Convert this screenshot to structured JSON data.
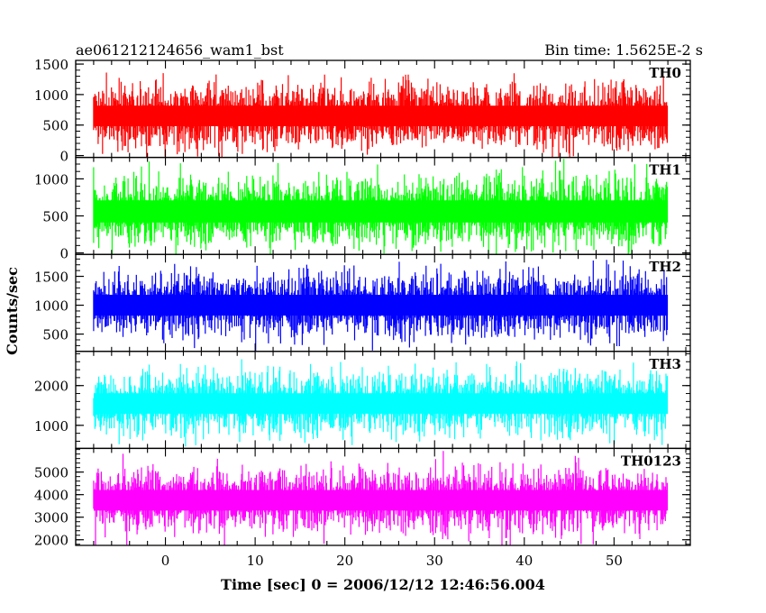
{
  "chart_data": [
    {
      "type": "line",
      "label": "TH0",
      "color": "#ff0000",
      "ylim": [
        -30,
        1560
      ],
      "yticks": [
        0,
        500,
        1000,
        1500
      ],
      "base_mean": 650,
      "base_noise": 280
    },
    {
      "type": "line",
      "label": "TH1",
      "color": "#00ff00",
      "ylim": [
        -20,
        1290
      ],
      "yticks": [
        0,
        500,
        1000
      ],
      "base_mean": 560,
      "base_noise": 250
    },
    {
      "type": "line",
      "label": "TH2",
      "color": "#0000ff",
      "ylim": [
        200,
        1880
      ],
      "yticks": [
        500,
        1000,
        1500
      ],
      "base_mean": 1000,
      "base_noise": 300
    },
    {
      "type": "line",
      "label": "TH3",
      "color": "#00ffff",
      "ylim": [
        420,
        2860
      ],
      "yticks": [
        1000,
        2000
      ],
      "base_mean": 1550,
      "base_noise": 430
    },
    {
      "type": "line",
      "label": "TH0123",
      "color": "#ff00ff",
      "ylim": [
        1750,
        6050
      ],
      "yticks": [
        2000,
        3000,
        4000,
        5000
      ],
      "base_mean": 3750,
      "base_noise": 760
    }
  ],
  "shared": {
    "title_left": "ae061212124656_wam1_bst",
    "title_right": "Bin time: 1.5625E-2 s",
    "xlabel": "Time [sec] 0 = 2006/12/12 12:46:56.004",
    "ylabel": "Counts/sec",
    "xlim": [
      -10,
      58.5
    ],
    "xticks": [
      0,
      10,
      20,
      30,
      40,
      50
    ],
    "data_range": [
      -8,
      56
    ]
  }
}
